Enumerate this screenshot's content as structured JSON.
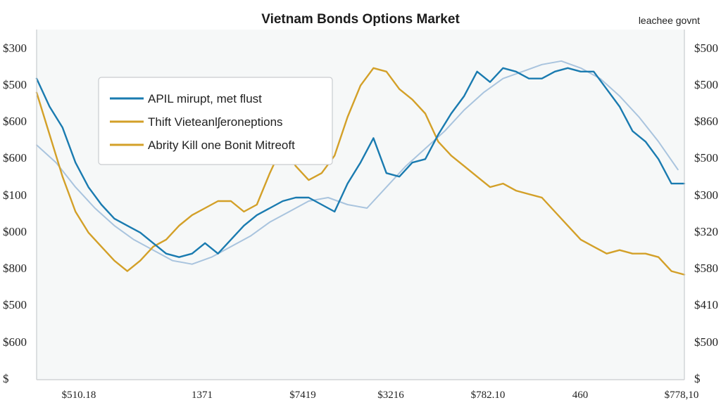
{
  "chart_data": {
    "type": "line",
    "title": "Vietnam Bonds Options Market",
    "corner_note": "leachee govnt",
    "y_left_ticks": [
      "$300",
      "$500",
      "$600",
      "$600",
      "$100",
      "$000",
      "$800",
      "$500",
      "$600",
      "$"
    ],
    "y_right_ticks": [
      "$500",
      "$500",
      "$860",
      "$500",
      "$300",
      "$320",
      "$580",
      "$410",
      "$500",
      "$"
    ],
    "x_ticks": [
      "$510.18",
      "1371",
      "$7419",
      "$3216",
      "$782.10",
      "460",
      "$778,10"
    ],
    "ylim": [
      0,
      100
    ],
    "xlim": [
      0,
      100
    ],
    "grid": false,
    "legend_placement": "top-left",
    "colors": {
      "blue": "#1a7bb0",
      "gold": "#d3a028",
      "light_blue": "#a9c4de",
      "plot_bg": "#f6f8f8",
      "axis": "#c9cccf"
    },
    "legend": [
      {
        "label": "APIL mirupt, met flust",
        "color": "#1a7bb0"
      },
      {
        "label": "Thift Vieteanlʃeroneptions",
        "color": "#d3a028"
      },
      {
        "label": "Abrity Kill one Bonit Mitreoft",
        "color": "#d3a028"
      }
    ],
    "series": [
      {
        "key": "blue",
        "color": "#1a7bb0",
        "x": [
          0,
          2,
          4,
          6,
          8,
          10,
          12,
          14,
          16,
          18,
          20,
          22,
          24,
          26,
          28,
          30,
          32,
          34,
          36,
          38,
          40,
          42,
          44,
          46,
          48,
          50,
          52,
          54,
          56,
          58,
          60,
          62,
          64,
          66,
          68,
          70,
          72,
          74,
          76,
          78,
          80,
          82,
          84,
          86,
          88,
          90,
          92,
          94,
          96,
          98,
          100
        ],
        "y": [
          86,
          78,
          72,
          62,
          55,
          50,
          46,
          44,
          42,
          39,
          36,
          35,
          36,
          39,
          36,
          40,
          44,
          47,
          49,
          51,
          52,
          52,
          50,
          48,
          56,
          62,
          69,
          59,
          58,
          62,
          63,
          70,
          76,
          81,
          88,
          85,
          89,
          88,
          86,
          86,
          88,
          89,
          88,
          88,
          83,
          78,
          71,
          68,
          63,
          56,
          56
        ]
      },
      {
        "key": "gold",
        "color": "#d3a028",
        "x": [
          0,
          2,
          4,
          6,
          8,
          10,
          12,
          14,
          16,
          18,
          20,
          22,
          24,
          26,
          28,
          30,
          32,
          34,
          36,
          38,
          40,
          42,
          44,
          46,
          48,
          50,
          52,
          54,
          56,
          58,
          60,
          62,
          64,
          66,
          68,
          70,
          72,
          74,
          76,
          78,
          80,
          82,
          84,
          86,
          88,
          90,
          92,
          94,
          96,
          98,
          100
        ],
        "y": [
          82,
          70,
          58,
          48,
          42,
          38,
          34,
          31,
          34,
          38,
          40,
          44,
          47,
          49,
          51,
          51,
          48,
          50,
          59,
          67,
          61,
          57,
          59,
          64,
          75,
          84,
          89,
          88,
          83,
          80,
          76,
          68,
          64,
          61,
          58,
          55,
          56,
          54,
          53,
          52,
          48,
          44,
          40,
          38,
          36,
          37,
          36,
          36,
          35,
          31,
          30
        ]
      },
      {
        "key": "light",
        "color": "#a9c4de",
        "x": [
          0,
          3,
          6,
          9,
          12,
          15,
          18,
          21,
          24,
          27,
          30,
          33,
          36,
          39,
          42,
          45,
          48,
          51,
          54,
          57,
          60,
          63,
          66,
          69,
          72,
          75,
          78,
          81,
          84,
          87,
          90,
          93,
          96,
          99
        ],
        "y": [
          67,
          62,
          55,
          49,
          44,
          40,
          37,
          34,
          33,
          35,
          38,
          41,
          45,
          48,
          51,
          52,
          50,
          49,
          55,
          61,
          66,
          71,
          77,
          82,
          86,
          88,
          90,
          91,
          89,
          86,
          81,
          75,
          68,
          60
        ]
      }
    ]
  }
}
